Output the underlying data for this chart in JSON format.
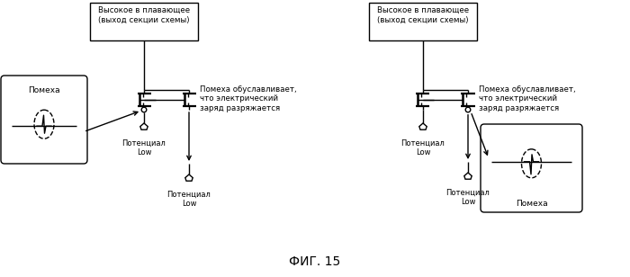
{
  "title": "ФИГ. 15",
  "background": "#ffffff",
  "box1_label": "Помеха",
  "box2_label": "Помеха",
  "pot_low": "Потенциал\nLow",
  "high_float_label": "Высокое в плавающее\n(выход секции схемы)",
  "noise_text1": "Помеха обуславливает,\nчто электрический\nзаряд разряжается",
  "noise_text2": "Помеха обуславливает,\nчто электрический\nзаряд разряжается",
  "lw": 1.0,
  "black": "#000000"
}
